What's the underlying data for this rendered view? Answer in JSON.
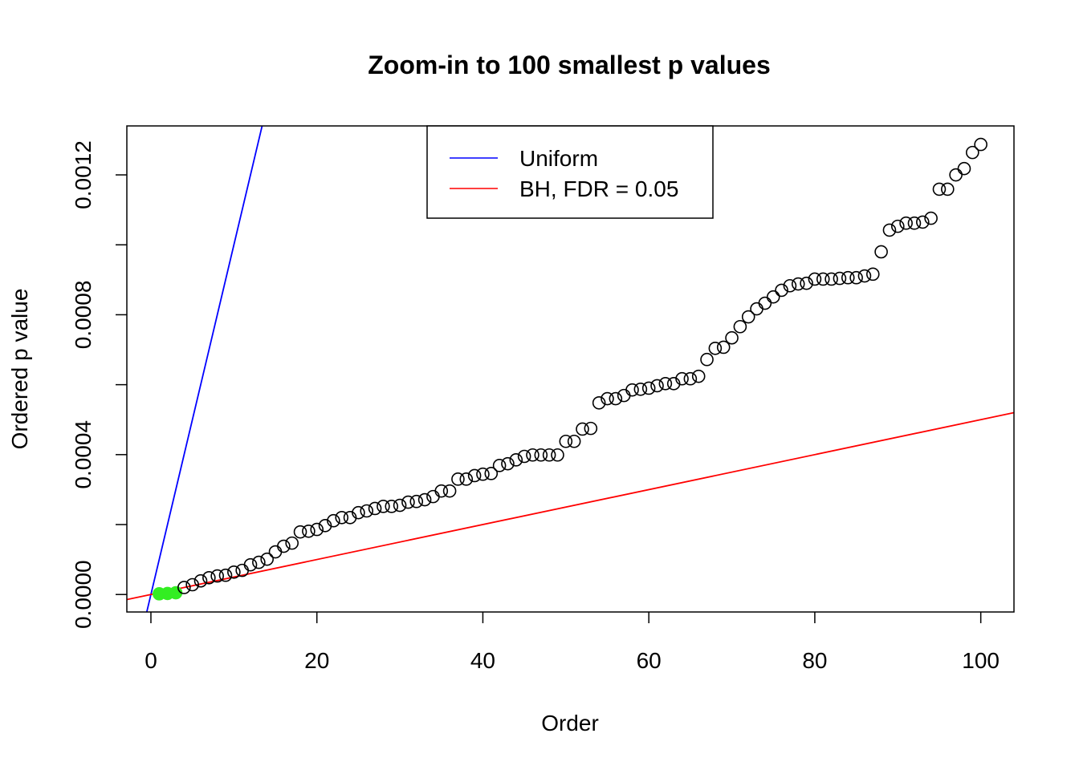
{
  "chart_data": {
    "type": "scatter",
    "title": "Zoom-in to 100 smallest p values",
    "xlabel": "Order",
    "ylabel": "Ordered p value",
    "xlim": [
      -2.9,
      104
    ],
    "ylim": [
      -5e-05,
      0.00134
    ],
    "xticks": [
      0,
      20,
      40,
      60,
      80,
      100
    ],
    "xtick_labels": [
      "0",
      "20",
      "40",
      "60",
      "80",
      "100"
    ],
    "yticks": [
      0,
      0.0002,
      0.0004,
      0.0006,
      0.0008,
      0.001,
      0.0012
    ],
    "ytick_labels": [
      "0.0000",
      "",
      "0.0004",
      "",
      "0.0008",
      "",
      "0.0012"
    ],
    "grid": false,
    "legend": {
      "placement": "top-center",
      "entries": [
        {
          "label": "Uniform",
          "color": "#0000ff"
        },
        {
          "label": "BH, FDR = 0.05",
          "color": "#ff0000"
        }
      ]
    },
    "lines": [
      {
        "name": "Uniform",
        "slope": 0.0001,
        "intercept": 0,
        "color": "#0000ff"
      },
      {
        "name": "BH, FDR = 0.05",
        "slope": 5e-06,
        "intercept": 0,
        "color": "#ff0000"
      }
    ],
    "significant_color": "#33ee22",
    "significant_count": 3,
    "x": [
      1,
      2,
      3,
      4,
      5,
      6,
      7,
      8,
      9,
      10,
      11,
      12,
      13,
      14,
      15,
      16,
      17,
      18,
      19,
      20,
      21,
      22,
      23,
      24,
      25,
      26,
      27,
      28,
      29,
      30,
      31,
      32,
      33,
      34,
      35,
      36,
      37,
      38,
      39,
      40,
      41,
      42,
      43,
      44,
      45,
      46,
      47,
      48,
      49,
      50,
      51,
      52,
      53,
      54,
      55,
      56,
      57,
      58,
      59,
      60,
      61,
      62,
      63,
      64,
      65,
      66,
      67,
      68,
      69,
      70,
      71,
      72,
      73,
      74,
      75,
      76,
      77,
      78,
      79,
      80,
      81,
      82,
      83,
      84,
      85,
      86,
      87,
      88,
      89,
      90,
      91,
      92,
      93,
      94,
      95,
      96,
      97,
      98,
      99,
      100
    ],
    "y": [
      2e-06,
      3e-06,
      5e-06,
      2e-05,
      2.8e-05,
      3.9e-05,
      4.8e-05,
      5.3e-05,
      5.5e-05,
      6.4e-05,
      6.9e-05,
      8.5e-05,
      9.2e-05,
      0.000101,
      0.000122,
      0.000138,
      0.000147,
      0.000179,
      0.000181,
      0.000186,
      0.000197,
      0.000211,
      0.00022,
      0.00022,
      0.000234,
      0.000239,
      0.000246,
      0.000252,
      0.000252,
      0.000255,
      0.000264,
      0.000266,
      0.000271,
      0.00028,
      0.000296,
      0.000296,
      0.00033,
      0.00033,
      0.00034,
      0.000344,
      0.000346,
      0.000369,
      0.000374,
      0.000385,
      0.000395,
      0.000399,
      0.000399,
      0.000399,
      0.000399,
      0.000438,
      0.000438,
      0.000473,
      0.000475,
      0.000548,
      0.00056,
      0.00056,
      0.000569,
      0.000585,
      0.000587,
      0.00059,
      0.000597,
      0.000603,
      0.000603,
      0.000617,
      0.000617,
      0.000624,
      0.000672,
      0.000704,
      0.000707,
      0.000734,
      0.000766,
      0.000794,
      0.000817,
      0.000833,
      0.000851,
      0.00087,
      0.000883,
      0.000888,
      0.00089,
      0.000902,
      0.000902,
      0.000902,
      0.000904,
      0.000906,
      0.000906,
      0.000911,
      0.000916,
      0.00098,
      0.001042,
      0.001053,
      0.001062,
      0.001062,
      0.001065,
      0.001076,
      0.001159,
      0.001159,
      0.0012,
      0.001218,
      0.001264,
      0.001287
    ]
  }
}
